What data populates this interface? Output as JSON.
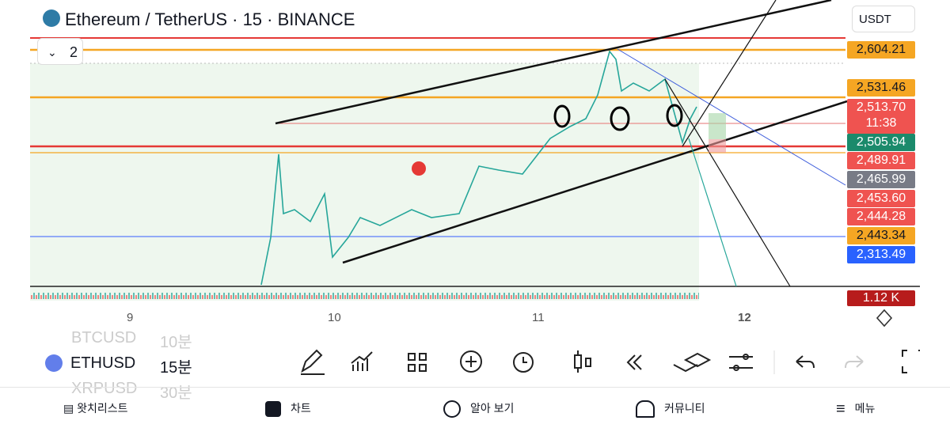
{
  "header": {
    "title": "Ethereum / TetherUS · 15 · BINANCE",
    "currency": "USDT",
    "indicator_count": "2"
  },
  "price_labels": [
    "2,604.21",
    "2,531.46",
    "2,513.70",
    "2,505.94",
    "2,489.91",
    "2,465.99",
    "2,453.60",
    "2,444.28",
    "2,443.34",
    "2,313.49"
  ],
  "countdown": "11:38",
  "volume_label": "1.12 K",
  "time_axis": [
    "9",
    "10",
    "11",
    "12"
  ],
  "symbols": [
    {
      "symbol": "BTCUSD",
      "interval": "10분"
    },
    {
      "symbol": "ETHUSD",
      "interval": "15분"
    },
    {
      "symbol": "XRPUSD",
      "interval": "30분"
    }
  ],
  "nav": [
    "왓치리스트",
    "차트",
    "알아 보기",
    "커뮤니티",
    "메뉴"
  ]
}
